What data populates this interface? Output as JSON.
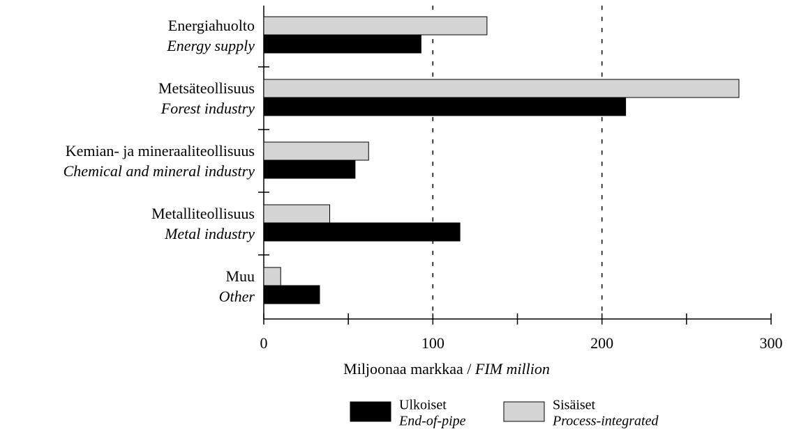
{
  "chart_data": {
    "type": "bar",
    "orientation": "horizontal",
    "categories": [
      [
        "Energiahuolto",
        "Energy supply"
      ],
      [
        "Metsäteollisuus",
        "Forest industry"
      ],
      [
        "Kemian- ja mineraaliteollisuus",
        "Chemical and mineral industry"
      ],
      [
        "Metalliteollisuus",
        "Metal industry"
      ],
      [
        "Muu",
        "Other"
      ]
    ],
    "series": [
      {
        "name": [
          "Sisäiset",
          "Process-integrated"
        ],
        "color": "#d4d4d4",
        "values": [
          132,
          281,
          62,
          39,
          10
        ]
      },
      {
        "name": [
          "Ulkoiset",
          "End-of-pipe"
        ],
        "color": "#000000",
        "values": [
          93,
          214,
          54,
          116,
          33
        ]
      }
    ],
    "xlabel": [
      "Miljoonaa markkaa /",
      "FIM million"
    ],
    "xlim": [
      0,
      300
    ],
    "xticks": [
      0,
      100,
      200,
      300
    ],
    "xminorticks": [
      50,
      150,
      250
    ],
    "grid": true
  }
}
